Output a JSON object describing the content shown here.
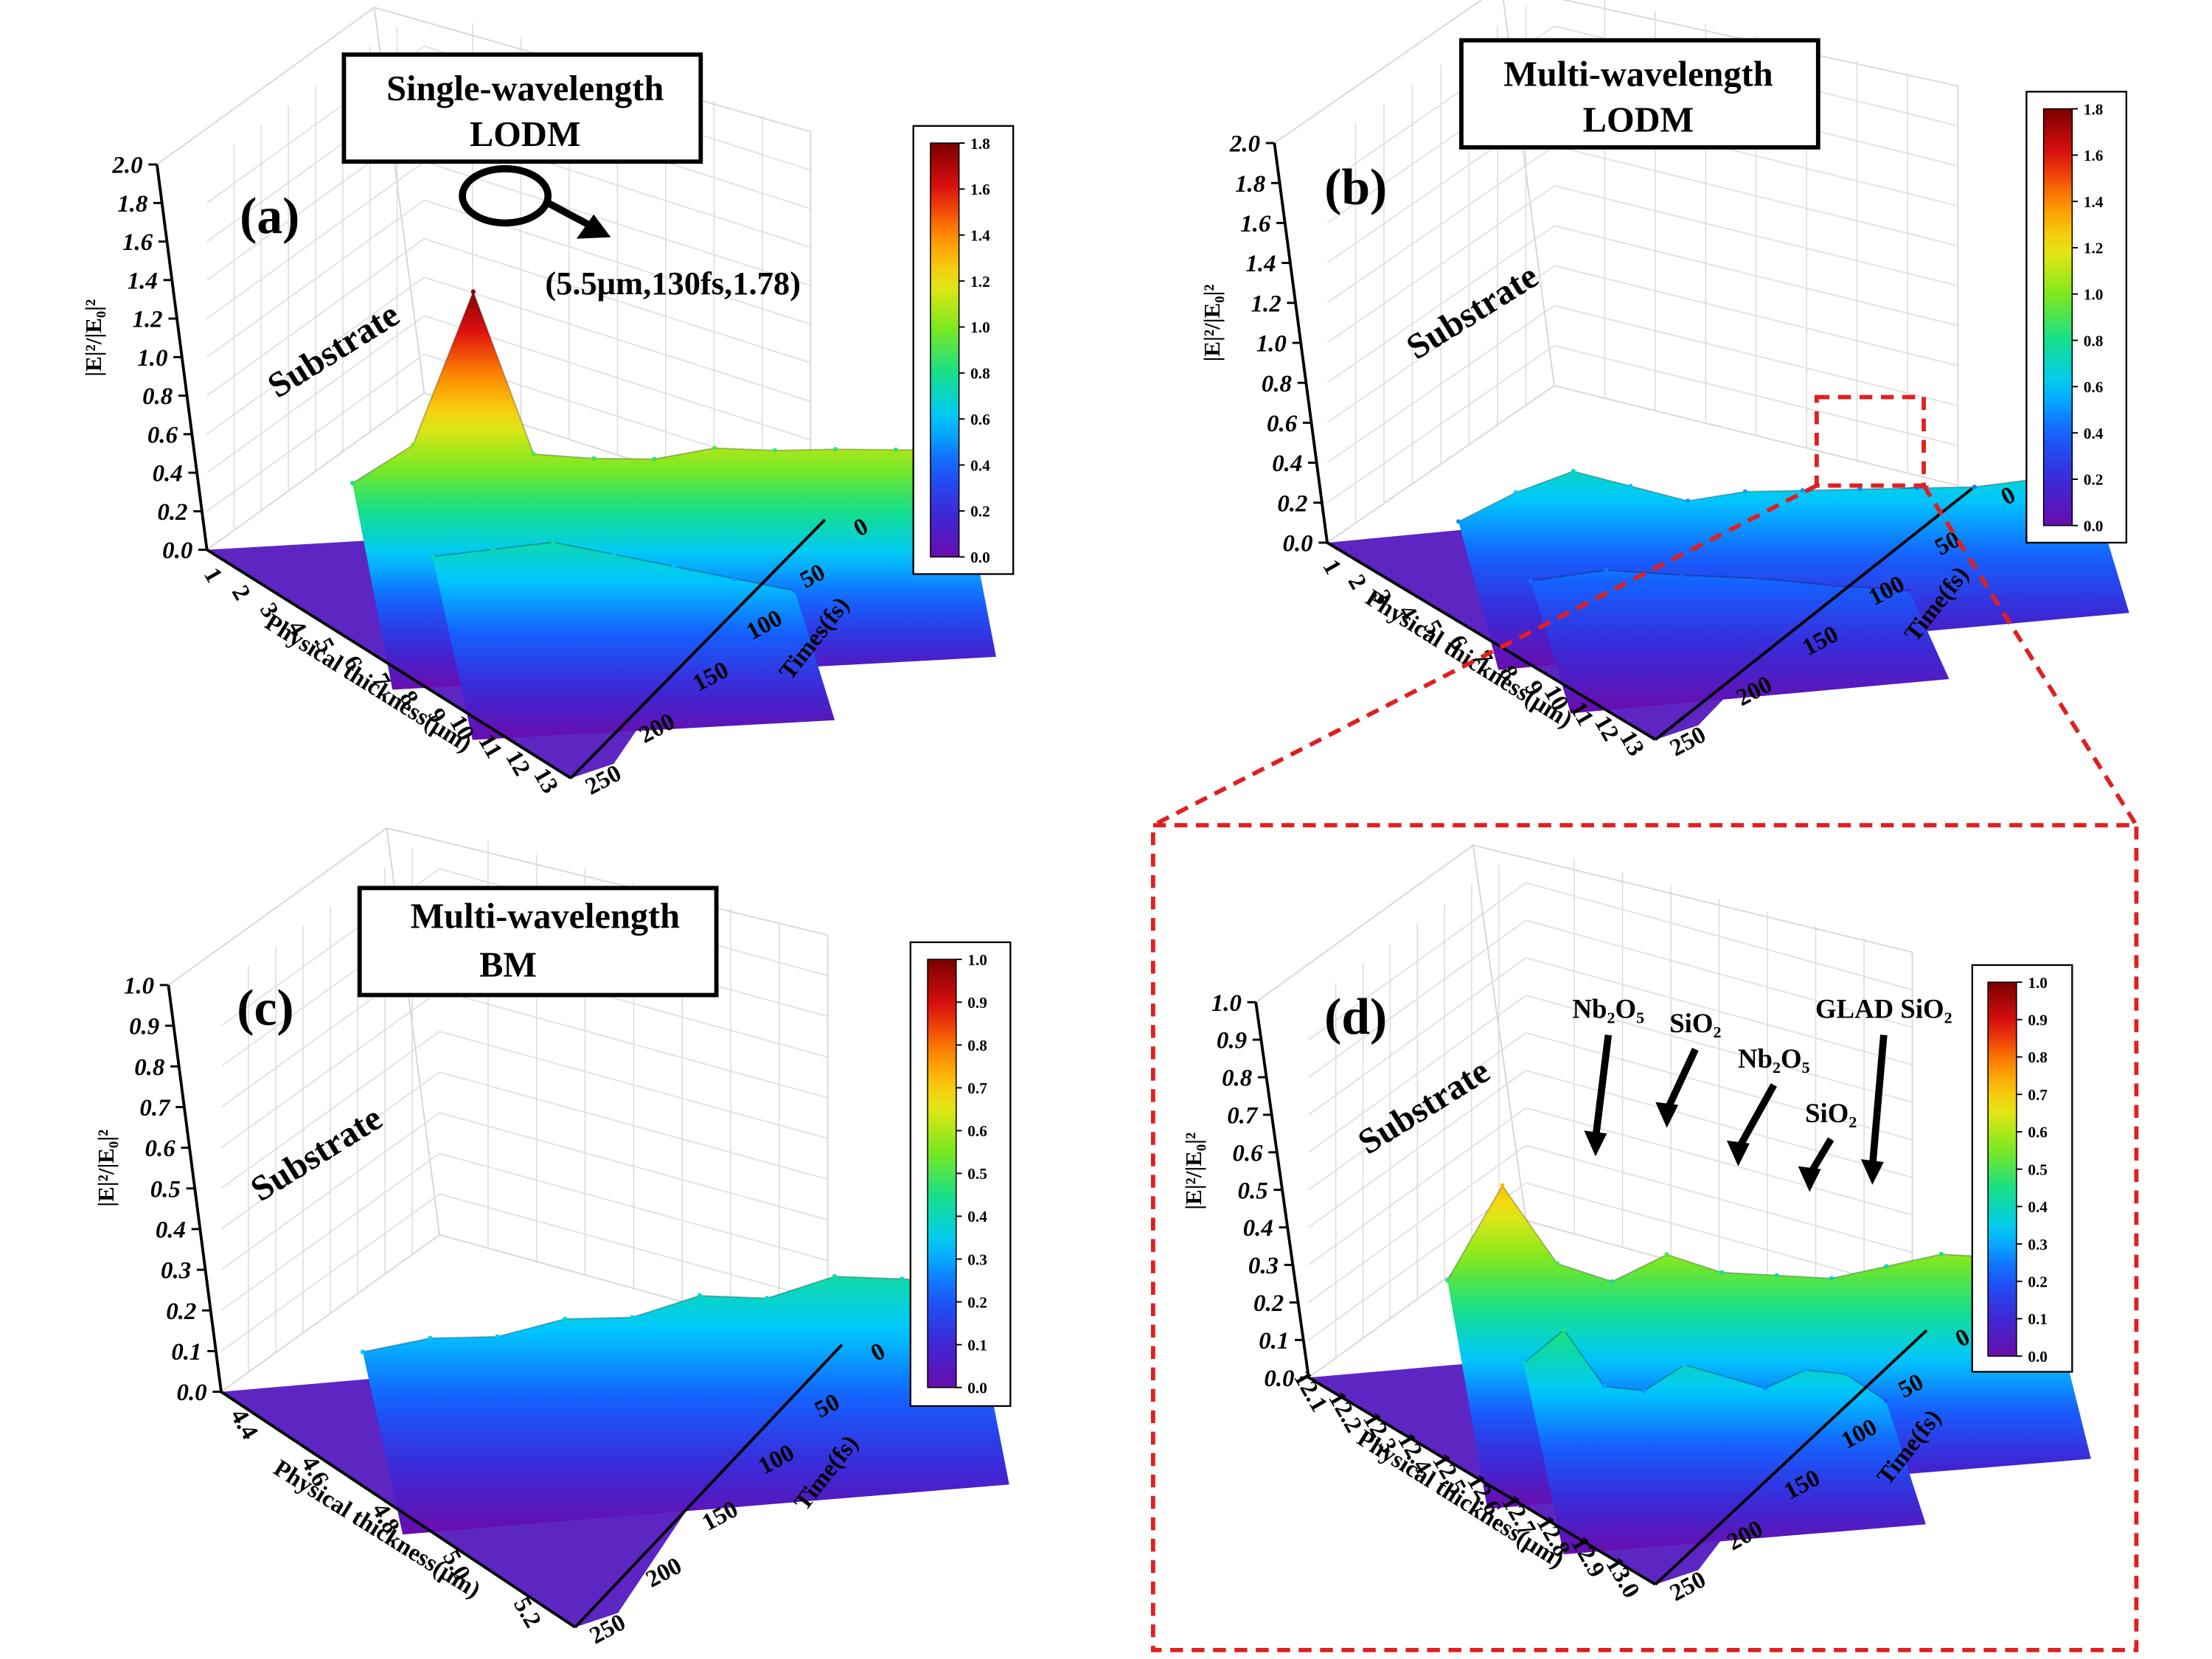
{
  "figure": {
    "callout_a": {
      "line1": "Single-wavelength",
      "line2": "LODM"
    },
    "callout_b": {
      "line1": "Multi-wavelength",
      "line2": "LODM"
    },
    "callout_c": {
      "line1": "Multi-wavelength",
      "line2": "BM"
    },
    "peak_annotation": "(5.5μm,130fs,1.78)"
  },
  "colors": {
    "scale": [
      "#6a0dad",
      "#3a2ad8",
      "#1560ff",
      "#00c8ff",
      "#14e08a",
      "#7fe81c",
      "#f2e614",
      "#ff8c00",
      "#e01010",
      "#7a0000"
    ],
    "callout_highlight": "#e02020",
    "axis": "#000000"
  },
  "chart_data": [
    {
      "type": "surface",
      "panel_label": "(a)",
      "region_label": "Substrate",
      "zlabel": "|E|²/|E₀|²",
      "xlabel": "Physical thickness(μm)",
      "ylabel": "Times(fs)",
      "zticks": [
        "0.0",
        "0.2",
        "0.4",
        "0.6",
        "0.8",
        "1.0",
        "1.2",
        "1.4",
        "1.6",
        "1.8",
        "2.0"
      ],
      "xticks": [
        "1",
        "2",
        "3",
        "4",
        "5",
        "6",
        "7",
        "8",
        "9",
        "10",
        "11",
        "12",
        "13"
      ],
      "yticks": [
        "0",
        "50",
        "100",
        "150",
        "200",
        "250"
      ],
      "zlim": [
        0,
        2.0
      ],
      "xlim": [
        1,
        13
      ],
      "ylim": [
        0,
        250
      ],
      "colorbar": {
        "ticks": [
          "0.0",
          "0.2",
          "0.4",
          "0.6",
          "0.8",
          "1.0",
          "1.2",
          "1.4",
          "1.6",
          "1.8"
        ],
        "range": [
          0,
          1.8
        ]
      },
      "peak": {
        "x": 5.5,
        "y": 130,
        "z": 1.78
      },
      "ridges": [
        {
          "name": "",
          "z": [
            0.82,
            1.0,
            1.78,
            0.92,
            0.88,
            0.86,
            0.9,
            0.87,
            0.86,
            0.84,
            0.82
          ]
        },
        {
          "name": "",
          "z": [
            0.7,
            0.72,
            0.74,
            0.66,
            0.58,
            0.5,
            0.42
          ]
        }
      ]
    },
    {
      "type": "surface",
      "panel_label": "(b)",
      "region_label": "Substrate",
      "zlabel": "|E|²/|E₀|²",
      "xlabel": "Physical thickness(μm)",
      "ylabel": "Time(fs)",
      "zticks": [
        "0.0",
        "0.2",
        "0.4",
        "0.6",
        "0.8",
        "1.0",
        "1.2",
        "1.4",
        "1.6",
        "1.8",
        "2.0"
      ],
      "xticks": [
        "1",
        "2",
        "3",
        "4",
        "5",
        "6",
        "7",
        "8",
        "9",
        "10",
        "11",
        "12",
        "13"
      ],
      "yticks": [
        "0",
        "50",
        "100",
        "150",
        "200",
        "250"
      ],
      "zlim": [
        0,
        2.0
      ],
      "xlim": [
        1,
        13
      ],
      "ylim": [
        0,
        250
      ],
      "colorbar": {
        "ticks": [
          "0.0",
          "0.2",
          "0.4",
          "0.6",
          "0.8",
          "1.0",
          "1.2",
          "1.4",
          "1.6",
          "1.8"
        ],
        "range": [
          0,
          1.8
        ]
      },
      "ridges": [
        {
          "name": "",
          "z": [
            0.5,
            0.62,
            0.7,
            0.6,
            0.5,
            0.52,
            0.5,
            0.48,
            0.46,
            0.44,
            0.45,
            0.42
          ]
        },
        {
          "name": "",
          "z": [
            0.42,
            0.44,
            0.38,
            0.33,
            0.26,
            0.2
          ]
        }
      ]
    },
    {
      "type": "surface",
      "panel_label": "(c)",
      "region_label": "Substrate",
      "zlabel": "|E|²/|E₀|²",
      "xlabel": "Physical thickness(μm)",
      "ylabel": "Time(fs)",
      "zticks": [
        "0.0",
        "0.1",
        "0.2",
        "0.3",
        "0.4",
        "0.5",
        "0.6",
        "0.7",
        "0.8",
        "0.9",
        "1.0"
      ],
      "xticks": [
        "4.4",
        "4.6",
        "4.8",
        "5.0",
        "5.2"
      ],
      "yticks": [
        "0",
        "50",
        "100",
        "150",
        "200",
        "250"
      ],
      "zlim": [
        0,
        1.0
      ],
      "xlim": [
        4.3,
        5.2
      ],
      "ylim": [
        0,
        250
      ],
      "colorbar": {
        "ticks": [
          "0.0",
          "0.1",
          "0.2",
          "0.3",
          "0.4",
          "0.5",
          "0.6",
          "0.7",
          "0.8",
          "0.9",
          "1.0"
        ],
        "range": [
          0,
          1.0
        ]
      },
      "ridges": [
        {
          "name": "",
          "z": [
            0.33,
            0.35,
            0.34,
            0.37,
            0.36,
            0.4,
            0.38,
            0.42,
            0.4,
            0.38
          ]
        }
      ]
    },
    {
      "type": "surface",
      "panel_label": "(d)",
      "region_label": "Substrate",
      "zlabel": "|E|²/|E₀|²",
      "xlabel": "Physical thickness(μm)",
      "ylabel": "Time(fs)",
      "zticks": [
        "0.0",
        "0.1",
        "0.2",
        "0.3",
        "0.4",
        "0.5",
        "0.6",
        "0.7",
        "0.8",
        "0.9",
        "1.0"
      ],
      "xticks": [
        "12.1",
        "12.2",
        "12.3",
        "12.4",
        "12.5",
        "12.6",
        "12.7",
        "12.8",
        "12.9",
        "13.0"
      ],
      "yticks": [
        "0",
        "50",
        "100",
        "150",
        "200",
        "250"
      ],
      "zlim": [
        0,
        1.0
      ],
      "xlim": [
        12.1,
        13.0
      ],
      "ylim": [
        0,
        250
      ],
      "colorbar": {
        "ticks": [
          "0.0",
          "0.1",
          "0.2",
          "0.3",
          "0.4",
          "0.5",
          "0.6",
          "0.7",
          "0.8",
          "0.9",
          "1.0"
        ],
        "range": [
          0,
          1.0
        ]
      },
      "layer_annotations": [
        {
          "text": "Nb₂O₅"
        },
        {
          "text": "SiO₂"
        },
        {
          "text": "Nb₂O₅"
        },
        {
          "text": "SiO₂"
        },
        {
          "text": "GLAD SiO₂"
        }
      ],
      "ridges": [
        {
          "name": "",
          "z": [
            0.48,
            0.72,
            0.5,
            0.44,
            0.5,
            0.44,
            0.42,
            0.4,
            0.42,
            0.44,
            0.42,
            0.3
          ]
        },
        {
          "name": "",
          "z": [
            0.38,
            0.46,
            0.3,
            0.28,
            0.34,
            0.3,
            0.26,
            0.3,
            0.28,
            0.2
          ]
        }
      ]
    }
  ]
}
